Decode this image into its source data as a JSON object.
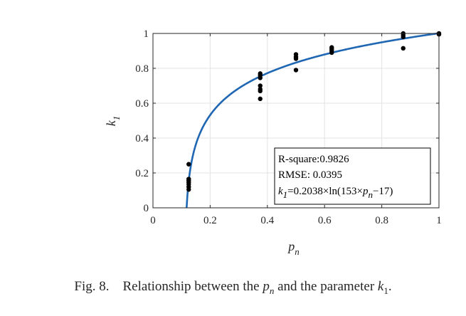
{
  "chart_data": {
    "type": "scatter",
    "xlabel_main": "p",
    "xlabel_sub": "n",
    "ylabel_main": "k",
    "ylabel_sub": "1",
    "xlim": [
      0,
      1
    ],
    "ylim": [
      0,
      1
    ],
    "xticks": [
      0,
      0.2,
      0.4,
      0.6,
      0.8,
      1
    ],
    "xtick_labels": [
      "0",
      "0.2",
      "0.4",
      "0.6",
      "0.8",
      "1"
    ],
    "yticks": [
      0,
      0.2,
      0.4,
      0.6,
      0.8,
      1
    ],
    "ytick_labels": [
      "0",
      "0.2",
      "0.4",
      "0.6",
      "0.8",
      "1"
    ],
    "grid": true,
    "colors": {
      "fit": "#1f66b3",
      "points": "#000000",
      "grid": "#e3e3e3",
      "axes": "#262626"
    },
    "points": [
      {
        "x": 0.125,
        "y": 0.25
      },
      {
        "x": 0.125,
        "y": 0.165
      },
      {
        "x": 0.125,
        "y": 0.155
      },
      {
        "x": 0.125,
        "y": 0.145
      },
      {
        "x": 0.125,
        "y": 0.135
      },
      {
        "x": 0.125,
        "y": 0.12
      },
      {
        "x": 0.125,
        "y": 0.105
      },
      {
        "x": 0.375,
        "y": 0.77
      },
      {
        "x": 0.375,
        "y": 0.76
      },
      {
        "x": 0.375,
        "y": 0.745
      },
      {
        "x": 0.375,
        "y": 0.7
      },
      {
        "x": 0.375,
        "y": 0.68
      },
      {
        "x": 0.375,
        "y": 0.67
      },
      {
        "x": 0.375,
        "y": 0.625
      },
      {
        "x": 0.5,
        "y": 0.88
      },
      {
        "x": 0.5,
        "y": 0.865
      },
      {
        "x": 0.5,
        "y": 0.855
      },
      {
        "x": 0.5,
        "y": 0.79
      },
      {
        "x": 0.625,
        "y": 0.92
      },
      {
        "x": 0.625,
        "y": 0.91
      },
      {
        "x": 0.625,
        "y": 0.9
      },
      {
        "x": 0.625,
        "y": 0.89
      },
      {
        "x": 0.875,
        "y": 1.0
      },
      {
        "x": 0.875,
        "y": 0.99
      },
      {
        "x": 0.875,
        "y": 0.98
      },
      {
        "x": 0.875,
        "y": 0.915
      },
      {
        "x": 1.0,
        "y": 1.0
      },
      {
        "x": 1.0,
        "y": 0.995
      }
    ],
    "fit": {
      "a": 0.2038,
      "b": 153,
      "c": 17,
      "x_start": 0.1176,
      "x_end": 1.0
    },
    "annotation": {
      "rsquare": "R-square:0.9826",
      "rmse": "RMSE: 0.0395",
      "eq_k": "k",
      "eq_k_sub": "1",
      "eq_mid": "=0.2038×ln(153×",
      "eq_p": "p",
      "eq_p_sub": "n",
      "eq_end": "−17)"
    }
  },
  "caption": {
    "fig": "Fig. 8.",
    "text_a": "Relationship between the",
    "p": "p",
    "p_sub": "n",
    "text_b": "and the parameter",
    "k": "k",
    "k_sub": "1",
    "end": "."
  }
}
